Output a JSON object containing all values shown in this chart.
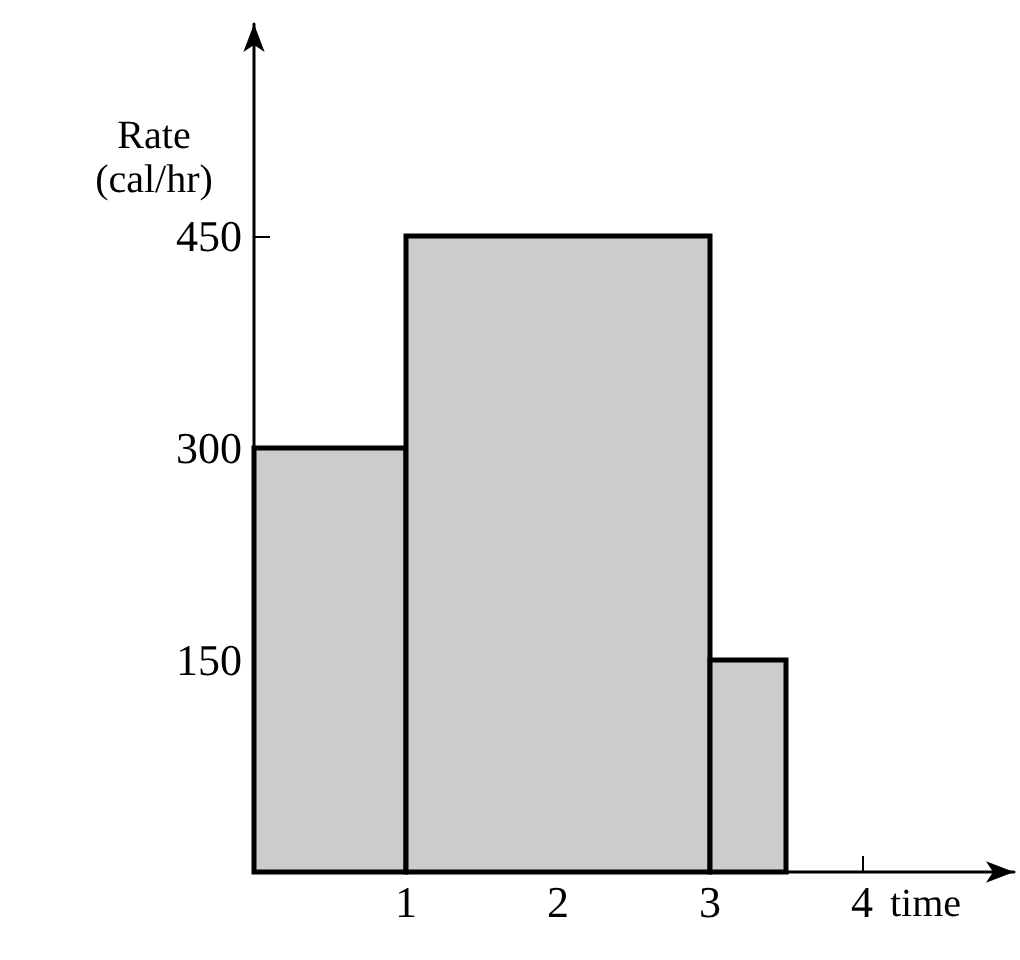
{
  "chart_data": {
    "type": "histogram",
    "xlabel": "time",
    "ylabel": "Rate (cal/hr)",
    "bins": [
      0,
      1,
      3,
      3.5
    ],
    "values": [
      300,
      450,
      150
    ],
    "color": "#cccccc",
    "xlim": [
      0,
      5
    ],
    "xticks": [
      1,
      2,
      3,
      4
    ],
    "ylim": [
      0,
      600
    ],
    "yticks": [
      150,
      300,
      450
    ],
    "grid": false
  }
}
